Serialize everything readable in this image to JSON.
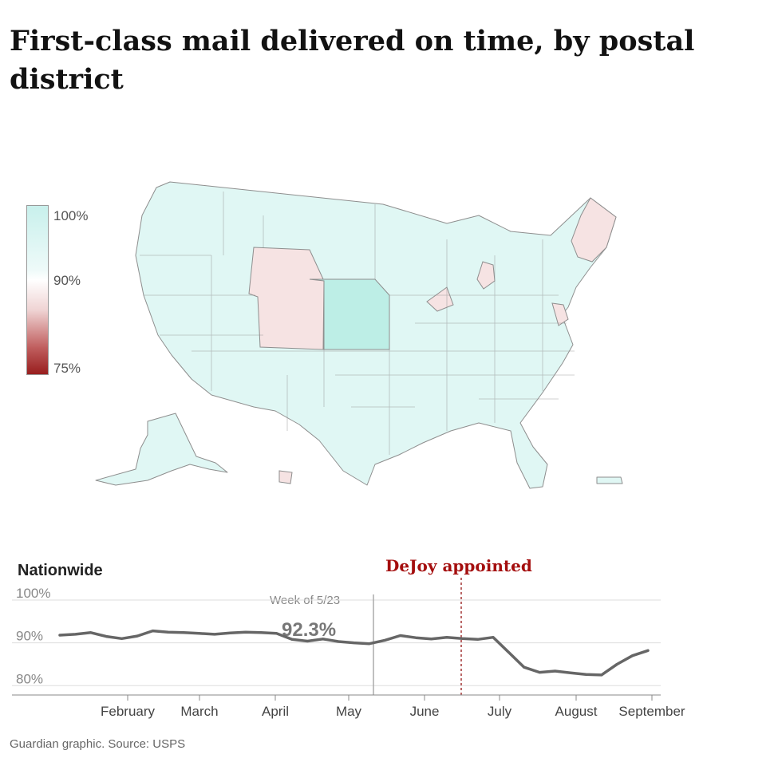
{
  "title": "First-class mail delivered on time, by postal district",
  "legend": {
    "labels": [
      "100%",
      "90%",
      "75%"
    ],
    "colors": {
      "high": "#c8f0ec",
      "mid": "#ffffff",
      "low": "#981e1e"
    }
  },
  "map": {
    "colors": {
      "base": "#e0f7f4",
      "teal": "#bdeee6",
      "pink": "#f6e3e3",
      "stroke": "#8e8e8e"
    }
  },
  "chart_data": {
    "type": "line",
    "title": "Nationwide",
    "x_tick_labels": [
      "February",
      "March",
      "April",
      "May",
      "June",
      "July",
      "August",
      "September"
    ],
    "y_tick_labels": [
      "100%",
      "90%",
      "80%"
    ],
    "ylim": [
      78,
      100
    ],
    "grid": true,
    "series": [
      {
        "values": [
          91.8,
          92.0,
          92.4,
          91.5,
          91.0,
          91.6,
          92.8,
          92.5,
          92.4,
          92.2,
          92.0,
          92.3,
          92.5,
          92.4,
          92.2,
          90.8,
          90.4,
          90.9,
          90.3,
          90.0,
          89.8,
          90.6,
          91.7,
          91.2,
          90.9,
          91.3,
          91.0,
          90.8,
          91.3,
          87.8,
          84.3,
          83.1,
          83.4,
          83.0,
          82.6,
          82.5,
          85.0,
          87.0,
          88.2
        ]
      }
    ],
    "annotations": {
      "week_label": "Week of 5/23",
      "week_value": "92.3%",
      "event_label": "DeJoy appointed"
    }
  },
  "source": "Guardian graphic. Source: USPS"
}
